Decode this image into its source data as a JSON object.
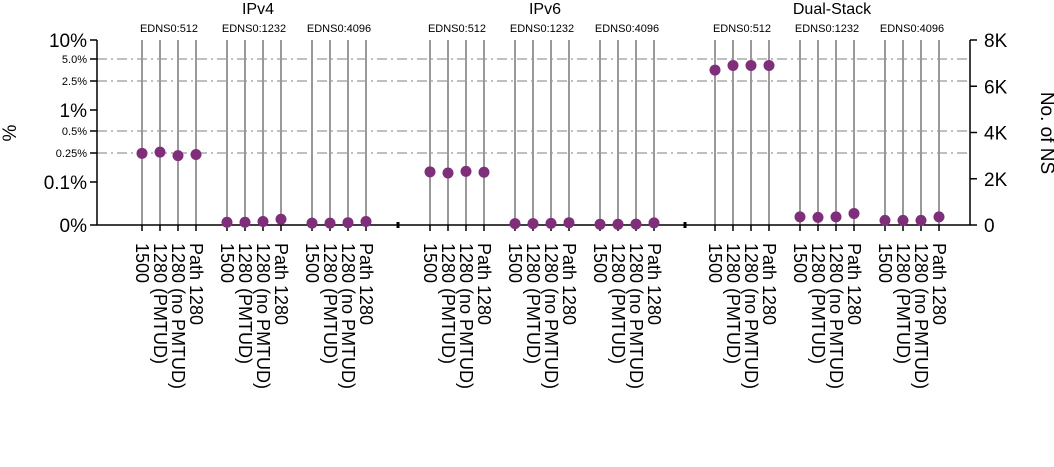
{
  "chart_data": {
    "type": "scatter",
    "groups": [
      "IPv4",
      "IPv6",
      "Dual-Stack"
    ],
    "edns_sizes": [
      "EDNS0:512",
      "EDNS0:1232",
      "EDNS0:4096"
    ],
    "mtu_labels": [
      "1500",
      "1280 (PMTUD)",
      "1280 (no PMTUD)",
      "Path 1280"
    ],
    "ylabel_left": "%",
    "ylabel_right": "No. of NS",
    "left_ticks": [
      "0%",
      "0.1%",
      "0.25%",
      "0.5%",
      "1%",
      "2.5%",
      "5.0%",
      "10%"
    ],
    "right_ticks": [
      "0",
      "2K",
      "4K",
      "6K",
      "8K"
    ],
    "ylim_right": [
      0,
      8000
    ],
    "grid": "dash-dot at 0.25%, 0.5%, 2.5%, 5.0%",
    "series": [
      {
        "values_ns": [
          [
            3100,
            3150,
            3000,
            3050
          ],
          [
            120,
            120,
            150,
            250
          ],
          [
            80,
            80,
            100,
            150
          ],
          [
            2300,
            2250,
            2320,
            2280
          ],
          [
            60,
            60,
            70,
            100
          ],
          [
            30,
            30,
            40,
            90
          ],
          [
            6700,
            6900,
            6900,
            6900
          ],
          [
            350,
            330,
            350,
            500
          ],
          [
            200,
            200,
            200,
            350
          ]
        ]
      }
    ]
  }
}
